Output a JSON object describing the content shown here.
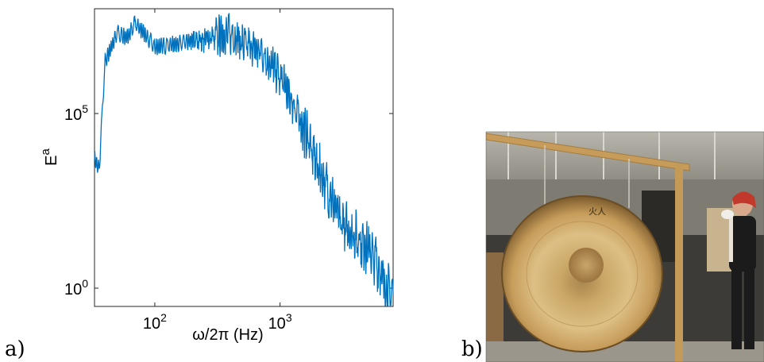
{
  "panels": {
    "a_label": "a)",
    "b_label": "b)"
  },
  "photo": {
    "subject": "gong",
    "alt": "Photograph of a large bronze gong hanging on a wooden frame in a workshop, with a person holding a mallet",
    "gong_inscription": "火人"
  },
  "chart_data": {
    "type": "line",
    "xscale": "log",
    "yscale": "log",
    "xlim": [
      33,
      8000
    ],
    "ylim": [
      0.3,
      100000000.0
    ],
    "xlabel_main": "ω/2π (Hz)",
    "ylabel_main": "E",
    "ylabel_sup": "a",
    "xticks": [
      100,
      1000
    ],
    "xtick_labels": [
      {
        "base": "10",
        "exp": "2"
      },
      {
        "base": "10",
        "exp": "3"
      }
    ],
    "yticks": [
      1,
      100000
    ],
    "ytick_labels": [
      {
        "base": "10",
        "exp": "0"
      },
      {
        "base": "10",
        "exp": "5"
      }
    ],
    "line_color": "#0072BD",
    "envelope": {
      "freq": [
        33,
        36,
        40,
        50,
        60,
        70,
        100,
        150,
        200,
        300,
        400,
        500,
        700,
        900,
        1100,
        1300,
        1600,
        2000,
        2500,
        3000,
        4000,
        5000,
        6000,
        7000,
        8000
      ],
      "level": [
        5000,
        2500,
        3000000.0,
        20000000.0,
        15000000.0,
        40000000.0,
        8000000.0,
        10000000.0,
        12000000.0,
        15000000.0,
        20000000.0,
        10000000.0,
        6000000.0,
        2000000.0,
        600000.0,
        150000.0,
        30000.0,
        3000.0,
        500,
        80,
        30,
        15,
        5,
        1,
        0.6
      ]
    },
    "noise_points": 900
  }
}
